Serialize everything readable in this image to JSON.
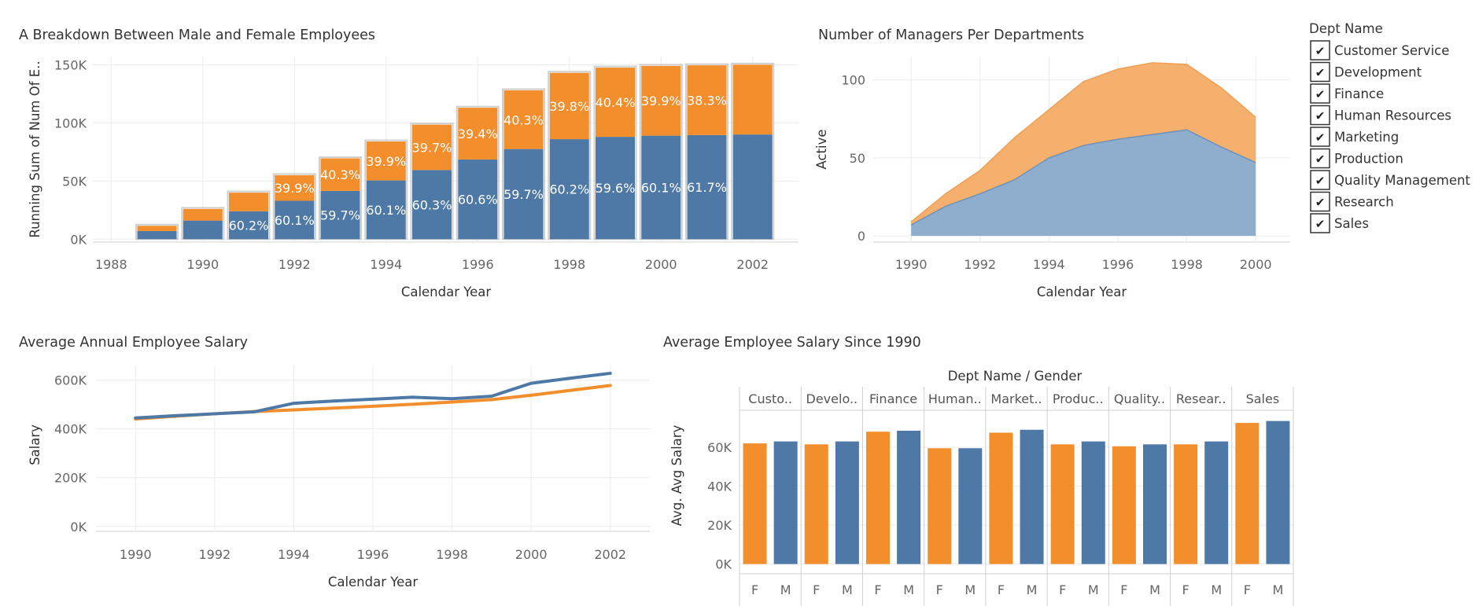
{
  "colors": {
    "male": "#4e79a7",
    "female": "#f28e2b",
    "female_area": "#f5b06d",
    "male_area": "#8fadcc",
    "grid": "#ececec"
  },
  "chart_data": [
    {
      "type": "bar",
      "title": "A Breakdown Between Male and Female Employees",
      "xlabel": "Calendar Year",
      "ylabel": "Running Sum of Num Of E..",
      "xlim": [
        1987.6,
        2003
      ],
      "ylim": [
        -2500,
        157000
      ],
      "x_ticks": [
        "1988",
        "1990",
        "1992",
        "1994",
        "1996",
        "1998",
        "2000",
        "2002"
      ],
      "y_ticks": [
        "0K",
        "50K",
        "100K",
        "150K"
      ],
      "categories": [
        1989,
        1990,
        1991,
        1992,
        1993,
        1994,
        1995,
        1996,
        1997,
        1998,
        1999,
        2000,
        2001,
        2002
      ],
      "series": [
        {
          "name": "M",
          "values": [
            7000,
            16000,
            24000,
            33000,
            41500,
            50500,
            59500,
            68500,
            77500,
            86000,
            88000,
            89000,
            89500,
            90000
          ],
          "labels": [
            "",
            "",
            "60.2%",
            "60.1%",
            "59.7%",
            "60.1%",
            "60.3%",
            "60.6%",
            "59.7%",
            "60.2%",
            "59.6%",
            "60.1%",
            "61.7%",
            ""
          ]
        },
        {
          "name": "F",
          "values": [
            4500,
            10000,
            16000,
            22000,
            28000,
            33500,
            39000,
            44500,
            50500,
            57000,
            59500,
            60000,
            60000,
            60000
          ],
          "labels": [
            "",
            "",
            "",
            "39.9%",
            "40.3%",
            "39.9%",
            "39.7%",
            "39.4%",
            "40.3%",
            "39.8%",
            "40.4%",
            "39.9%",
            "38.3%",
            ""
          ]
        }
      ]
    },
    {
      "type": "area",
      "title": "Number of Managers Per Departments",
      "xlabel": "Calendar Year",
      "ylabel": "Active",
      "xlim": [
        1988.9,
        2001
      ],
      "ylim": [
        -4,
        115
      ],
      "x_ticks": [
        "1990",
        "1992",
        "1994",
        "1996",
        "1998",
        "2000"
      ],
      "y_ticks": [
        "0",
        "50",
        "100"
      ],
      "x": [
        1990,
        1991,
        1992,
        1993,
        1994,
        1995,
        1996,
        1997,
        1998,
        1999,
        2000
      ],
      "series": [
        {
          "name": "M",
          "values": [
            7,
            19,
            27,
            36,
            50,
            58,
            62,
            65,
            68,
            57,
            47
          ]
        },
        {
          "name": "F",
          "values": [
            2,
            8,
            15,
            27,
            31,
            41,
            45,
            46,
            42,
            38,
            29
          ]
        }
      ]
    },
    {
      "type": "line",
      "title": "Average Annual Employee Salary",
      "xlabel": "Calendar Year",
      "ylabel": "Salary",
      "xlim": [
        1989,
        2003
      ],
      "ylim": [
        -20000,
        660000
      ],
      "x_ticks": [
        "1990",
        "1992",
        "1994",
        "1996",
        "1998",
        "2000",
        "2002"
      ],
      "y_ticks": [
        "0K",
        "200K",
        "400K",
        "600K"
      ],
      "x": [
        1990,
        1991,
        1992,
        1993,
        1994,
        1995,
        1996,
        1997,
        1998,
        1999,
        2000,
        2001,
        2002
      ],
      "series": [
        {
          "name": "M",
          "values": [
            445000,
            454000,
            462000,
            470000,
            505000,
            514000,
            522000,
            530000,
            524000,
            534000,
            587000,
            608000,
            628000
          ]
        },
        {
          "name": "F",
          "values": [
            441000,
            452000,
            462000,
            471000,
            478000,
            485000,
            493000,
            501000,
            510000,
            520000,
            538000,
            558000,
            578000
          ]
        }
      ]
    },
    {
      "type": "bar",
      "title": "Average Employee Salary Since 1990",
      "header": "Dept Name  /  Gender",
      "ylabel": "Avg. Avg Salary",
      "ylim": [
        -5000,
        79000
      ],
      "y_ticks": [
        "0K",
        "20K",
        "40K",
        "60K"
      ],
      "categories": [
        "Custo..",
        "Develo..",
        "Finance",
        "Human..",
        "Market..",
        "Produc..",
        "Quality..",
        "Resear..",
        "Sales"
      ],
      "gender_labels": [
        "F",
        "M"
      ],
      "series": [
        {
          "name": "F",
          "values": [
            62000,
            61500,
            68000,
            59500,
            67500,
            61500,
            60500,
            61500,
            72500
          ]
        },
        {
          "name": "M",
          "values": [
            63000,
            63000,
            68500,
            59500,
            69000,
            63000,
            61500,
            63000,
            73500
          ]
        }
      ]
    }
  ],
  "legend": {
    "title": "Dept Name",
    "items": [
      "Customer Service",
      "Development",
      "Finance",
      "Human Resources",
      "Marketing",
      "Production",
      "Quality Management",
      "Research",
      "Sales"
    ],
    "check_glyph": "✔"
  }
}
